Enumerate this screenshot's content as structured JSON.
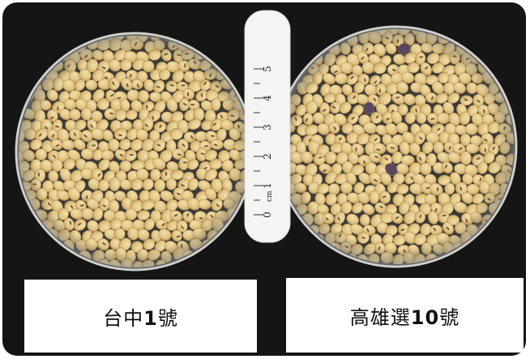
{
  "labels": {
    "left": {
      "prefix": "台中",
      "number": "1",
      "suffix": "號"
    },
    "right": {
      "prefix": "高雄選",
      "number": "10",
      "suffix": "號"
    }
  },
  "ruler": {
    "ticks": [
      "0",
      "1",
      "2",
      "3",
      "4",
      "5"
    ],
    "unit": "cm"
  },
  "colors": {
    "background": "#151515",
    "dish_rim": "#c9c9c6",
    "bean": "#e3c98a",
    "bean_shade": "#caa863",
    "hilum": "#7a5a3a",
    "dark_bean": "#5a4660",
    "ruler": "#f4f4f2",
    "label_card": "#ffffff"
  }
}
